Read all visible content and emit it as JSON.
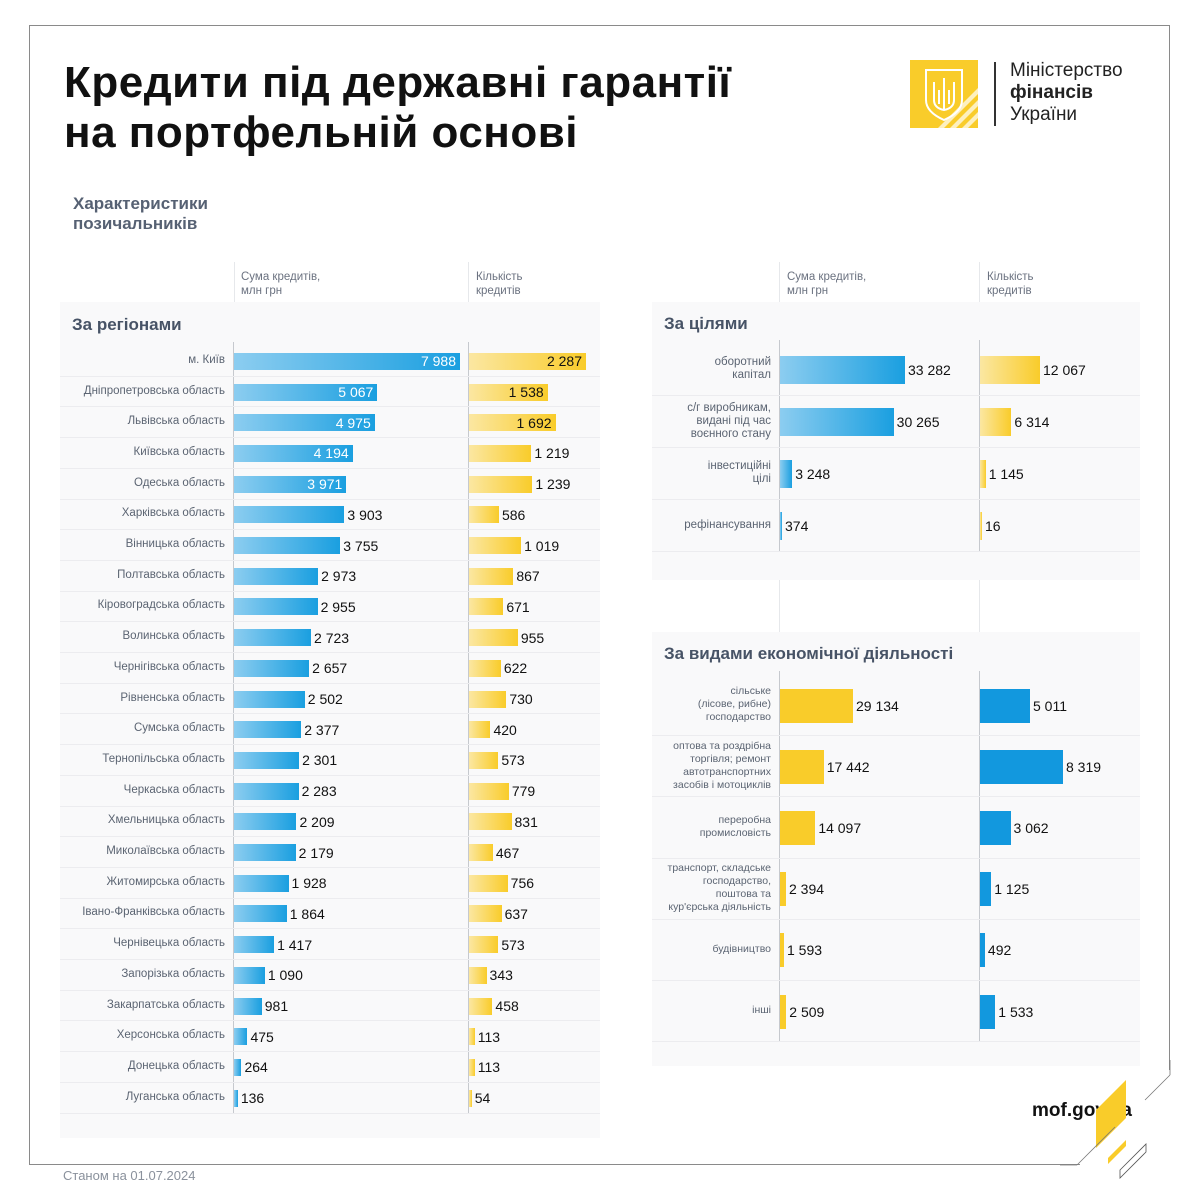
{
  "header": {
    "title_line1": "Кредити під державні гарантії",
    "title_line2": "на портфельній основі"
  },
  "logo": {
    "line1": "Міністерство",
    "line2": "фінансів",
    "line3": "України",
    "icon": "trident-emblem-icon",
    "brand_color": "#F9CC2A"
  },
  "subtitle": {
    "line1": "Характеристики",
    "line2": "позичальників"
  },
  "column_headers": {
    "sum_line1": "Сума кредитів,",
    "sum_line2": "млн грн",
    "count_line1": "Кількість",
    "count_line2": "кредитів"
  },
  "footer": {
    "site": "mof.gov.ua",
    "date": "Станом на 01.07.2024"
  },
  "colors": {
    "blue": "#1A9FE0",
    "yellow": "#F9CC2A"
  },
  "chart_data": [
    {
      "type": "bar",
      "orientation": "horizontal",
      "title": "За регіонами",
      "categories": [
        "м. Київ",
        "Дніпропетровська область",
        "Львівська область",
        "Київська область",
        "Одеська область",
        "Харківська область",
        "Вінницька область",
        "Полтавська область",
        "Кіровоградська область",
        "Волинська область",
        "Чернігівська область",
        "Рівненська область",
        "Сумська область",
        "Тернопільська область",
        "Черкаська область",
        "Хмельницька область",
        "Миколаївська область",
        "Житомирська область",
        "Івано-Франківська область",
        "Чернівецька область",
        "Запорізька область",
        "Закарпатська область",
        "Херсонська область",
        "Донецька область",
        "Луганська область"
      ],
      "series": [
        {
          "name": "Сума кредитів, млн грн",
          "color": "blue",
          "values": [
            7988,
            5067,
            4975,
            4194,
            3971,
            3903,
            3755,
            2973,
            2955,
            2723,
            2657,
            2502,
            2377,
            2301,
            2283,
            2209,
            2179,
            1928,
            1864,
            1417,
            1090,
            981,
            475,
            264,
            136
          ],
          "labels": [
            "7 988",
            "5 067",
            "4 975",
            "4 194",
            "3 971",
            "3 903",
            "3 755",
            "2 973",
            "2 955",
            "2 723",
            "2 657",
            "2 502",
            "2 377",
            "2 301",
            "2 283",
            "2 209",
            "2 179",
            "1 928",
            "1 864",
            "1 417",
            "1 090",
            "981",
            "475",
            "264",
            "136"
          ]
        },
        {
          "name": "Кількість кредитів",
          "color": "yellow",
          "values": [
            2287,
            1538,
            1692,
            1219,
            1239,
            586,
            1019,
            867,
            671,
            955,
            622,
            730,
            420,
            573,
            779,
            831,
            467,
            756,
            637,
            573,
            343,
            458,
            113,
            113,
            54
          ],
          "labels": [
            "2 287",
            "1 538",
            "1 692",
            "1 219",
            "1 239",
            "586",
            "1 019",
            "867",
            "671",
            "955",
            "622",
            "730",
            "420",
            "573",
            "779",
            "831",
            "467",
            "756",
            "637",
            "573",
            "343",
            "458",
            "113",
            "113",
            "54"
          ]
        }
      ]
    },
    {
      "type": "bar",
      "orientation": "horizontal",
      "title": "За цілями",
      "categories": [
        [
          "оборотний",
          "капітал"
        ],
        [
          "с/г виробникам,",
          "видані під час",
          "воєнного стану"
        ],
        [
          "інвестиційні",
          "цілі"
        ],
        [
          "рефінансування"
        ]
      ],
      "series": [
        {
          "name": "Сума кредитів, млн грн",
          "color": "blue",
          "values": [
            33282,
            30265,
            3248,
            374
          ],
          "labels": [
            "33 282",
            "30 265",
            "3 248",
            "374"
          ]
        },
        {
          "name": "Кількість кредитів",
          "color": "yellow",
          "values": [
            12067,
            6314,
            1145,
            16
          ],
          "labels": [
            "12 067",
            "6 314",
            "1 145",
            "16"
          ]
        }
      ]
    },
    {
      "type": "bar",
      "orientation": "horizontal",
      "title": "За видами економічної діяльності",
      "categories": [
        [
          "сільське",
          "(лісове, рибне)",
          "господарство"
        ],
        [
          "оптова та роздрібна",
          "торгівля; ремонт",
          "автотранспортних",
          "засобів і мотоциклів"
        ],
        [
          "переробна",
          "промисловість"
        ],
        [
          "транспорт, складське",
          "господарство,",
          "поштова та",
          "кур'єрська діяльність"
        ],
        [
          "будівництво"
        ],
        [
          "інші"
        ]
      ],
      "series": [
        {
          "name": "Сума кредитів, млн грн",
          "color": "yellow",
          "values": [
            29134,
            17442,
            14097,
            2394,
            1593,
            2509
          ],
          "labels": [
            "29 134",
            "17 442",
            "14 097",
            "2 394",
            "1 593",
            "2 509"
          ]
        },
        {
          "name": "Кількість кредитів",
          "color": "blue",
          "values": [
            5011,
            8319,
            3062,
            1125,
            492,
            1533
          ],
          "labels": [
            "5 011",
            "8 319",
            "3 062",
            "1 125",
            "492",
            "1 533"
          ]
        }
      ]
    }
  ]
}
